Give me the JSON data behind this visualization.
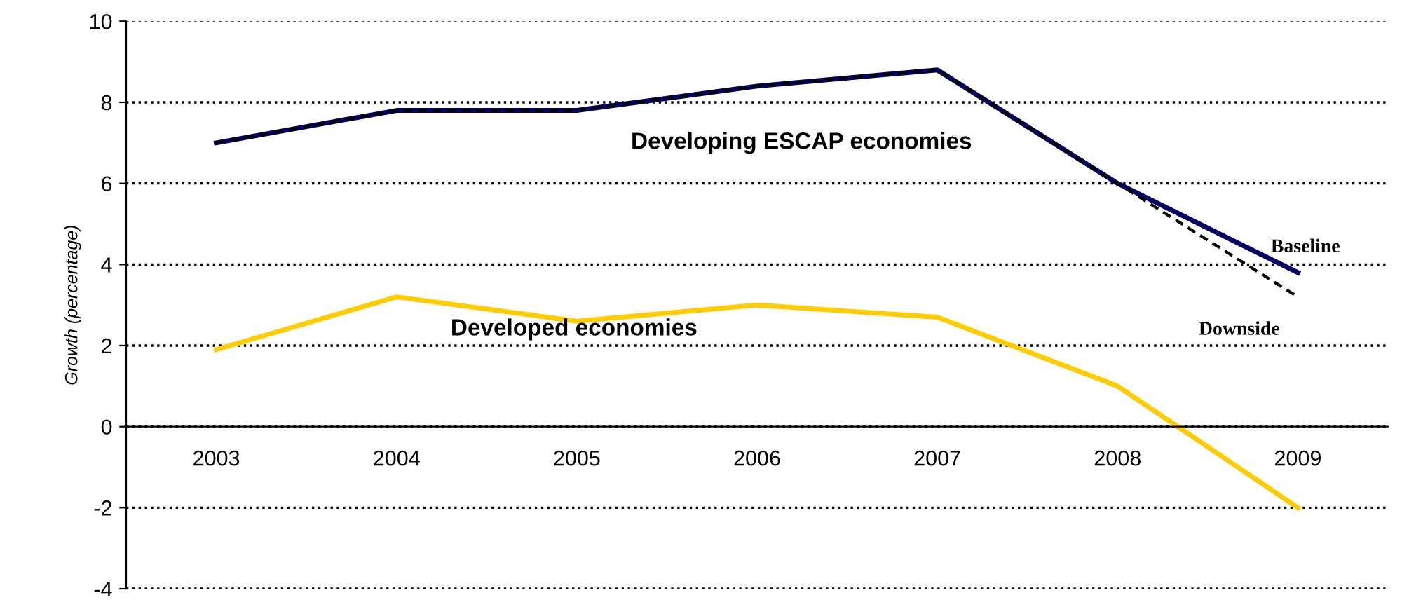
{
  "chart_data": {
    "type": "line",
    "ylabel": "Growth (percentage)",
    "categories": [
      "2003",
      "2004",
      "2005",
      "2006",
      "2007",
      "2008",
      "2009"
    ],
    "series": [
      {
        "name": "Downside",
        "color": "#000000",
        "line_style": "dashed",
        "values": [
          7.0,
          7.8,
          7.8,
          8.4,
          8.8,
          6.0,
          3.2
        ]
      },
      {
        "name": "Developing ESCAP economies",
        "color": "#000066",
        "line_style": "solid",
        "values": [
          7.0,
          7.8,
          7.8,
          8.4,
          8.8,
          6.0,
          3.8
        ]
      },
      {
        "name": "Developed economies",
        "color": "#ffcc00",
        "line_style": "solid",
        "values": [
          1.9,
          3.2,
          2.6,
          3.0,
          2.7,
          1.0,
          -2.0
        ]
      }
    ],
    "annotations": [
      {
        "text": "Baseline",
        "x": "2009",
        "y": 3.8
      }
    ],
    "ylim": [
      -4,
      10
    ],
    "yticks": [
      -4,
      -2,
      0,
      2,
      4,
      6,
      8,
      10
    ],
    "grid": "y",
    "marker": "none",
    "legend": false
  }
}
